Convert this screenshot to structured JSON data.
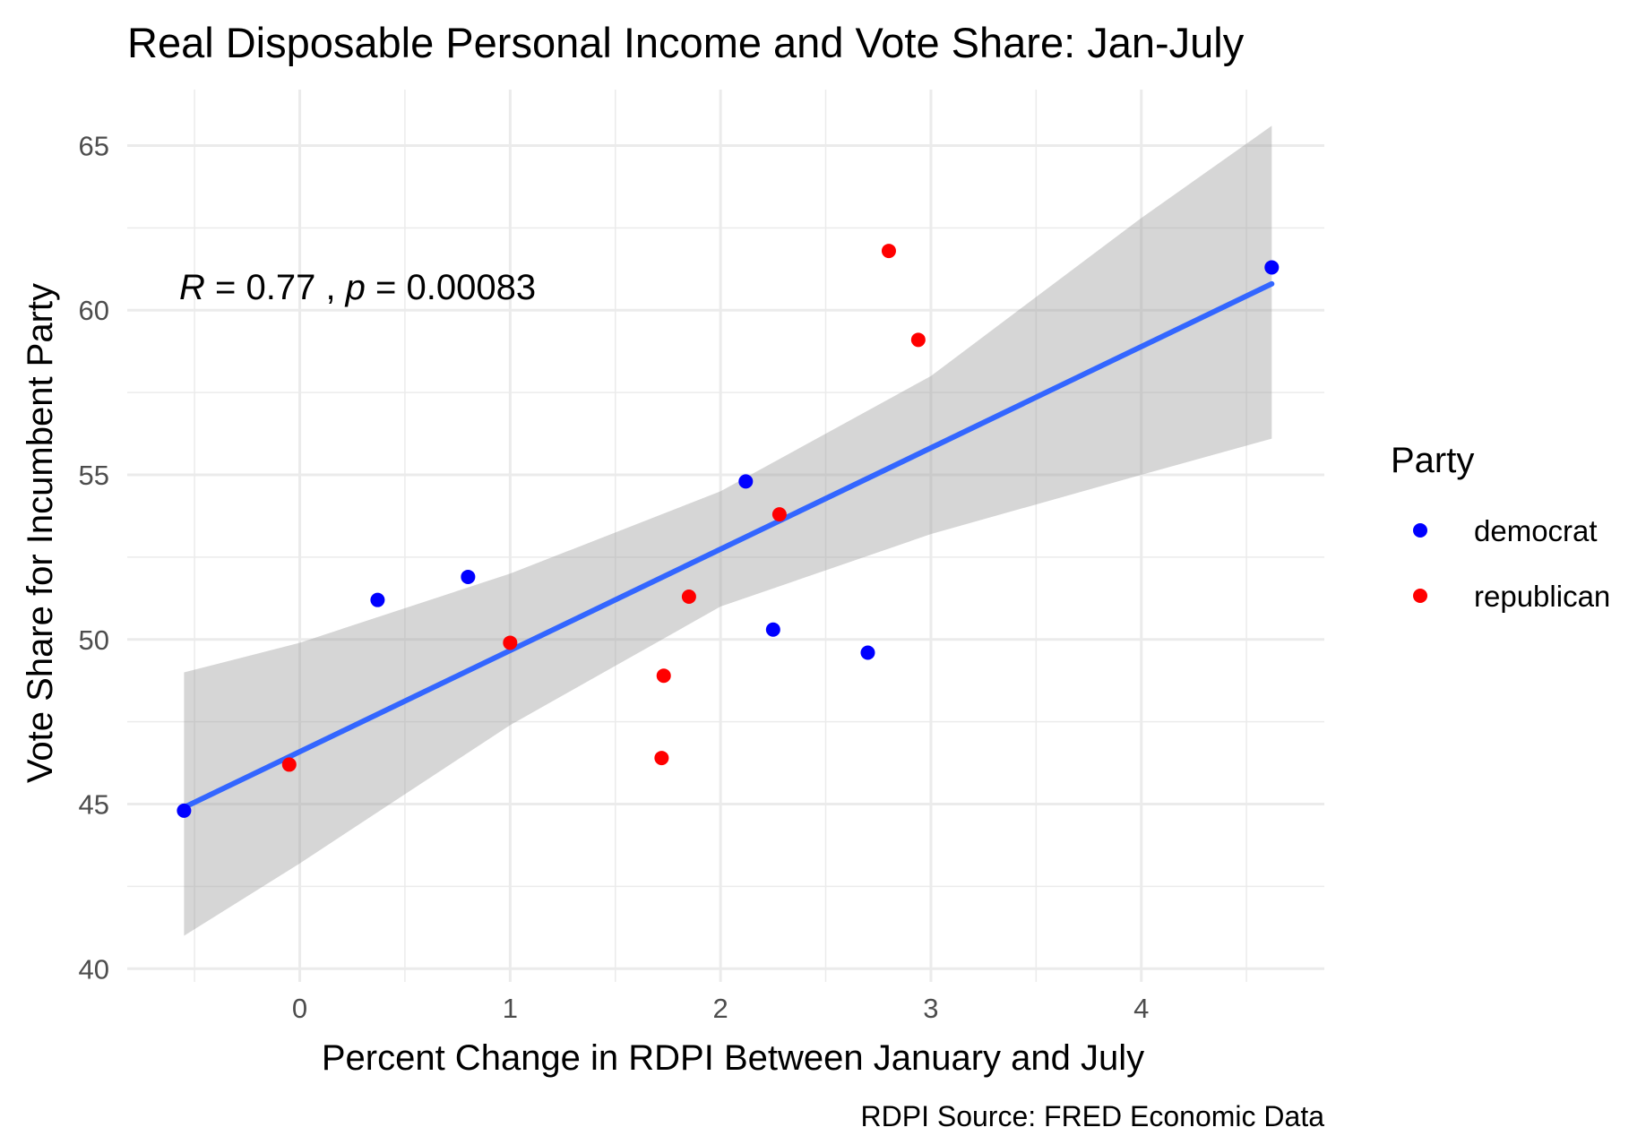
{
  "chart_data": {
    "type": "scatter",
    "title": "Real Disposable Personal Income and Vote Share: Jan-July",
    "xlabel": "Percent Change in RDPI Between January and July",
    "ylabel": "Vote Share for Incumbent Party",
    "caption": "RDPI Source: FRED Economic Data",
    "xlim": [
      -0.82,
      4.87
    ],
    "ylim": [
      39.6,
      66.7
    ],
    "x_ticks": [
      0,
      1,
      2,
      3,
      4
    ],
    "y_ticks": [
      40,
      45,
      50,
      55,
      60,
      65
    ],
    "x_tick_labels": [
      "0",
      "1",
      "2",
      "3",
      "4"
    ],
    "y_tick_labels": [
      "40",
      "45",
      "50",
      "55",
      "60",
      "65"
    ],
    "grid": true,
    "legend": {
      "title": "Party",
      "placement": "right",
      "entries": [
        {
          "label": "democrat",
          "color": "#0000ff"
        },
        {
          "label": "republican",
          "color": "#ff0000"
        }
      ]
    },
    "annotation": {
      "r_symbol": "R",
      "r_value": " = 0.77 , ",
      "p_symbol": "p",
      "p_value": " = 0.00083"
    },
    "series": [
      {
        "name": "democrat",
        "color": "#0000ff",
        "points": [
          {
            "x": -0.55,
            "y": 44.8
          },
          {
            "x": 0.37,
            "y": 51.2
          },
          {
            "x": 0.8,
            "y": 51.9
          },
          {
            "x": 2.12,
            "y": 54.8
          },
          {
            "x": 2.25,
            "y": 50.3
          },
          {
            "x": 2.7,
            "y": 49.6
          },
          {
            "x": 4.62,
            "y": 61.3
          }
        ]
      },
      {
        "name": "republican",
        "color": "#ff0000",
        "points": [
          {
            "x": -0.05,
            "y": 46.2
          },
          {
            "x": 1.0,
            "y": 49.9
          },
          {
            "x": 1.72,
            "y": 46.4
          },
          {
            "x": 1.73,
            "y": 48.9
          },
          {
            "x": 1.85,
            "y": 51.3
          },
          {
            "x": 2.28,
            "y": 53.8
          },
          {
            "x": 2.8,
            "y": 61.8
          },
          {
            "x": 2.94,
            "y": 59.1
          }
        ]
      }
    ],
    "fit": {
      "color": "#3366ff",
      "band_color": "#999999",
      "line": [
        {
          "x": -0.55,
          "y": 44.9
        },
        {
          "x": 4.62,
          "y": 60.8
        }
      ],
      "band": [
        {
          "x": -0.55,
          "lower": 41.0,
          "upper": 49.0
        },
        {
          "x": 0.0,
          "lower": 43.2,
          "upper": 49.9
        },
        {
          "x": 1.0,
          "lower": 47.4,
          "upper": 52.0
        },
        {
          "x": 2.0,
          "lower": 51.0,
          "upper": 54.5
        },
        {
          "x": 3.0,
          "lower": 53.2,
          "upper": 58.0
        },
        {
          "x": 4.0,
          "lower": 55.0,
          "upper": 62.8
        },
        {
          "x": 4.62,
          "lower": 56.1,
          "upper": 65.6
        }
      ]
    }
  }
}
